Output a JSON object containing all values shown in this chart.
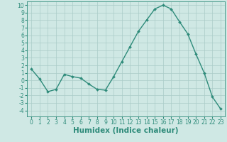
{
  "x": [
    0,
    1,
    2,
    3,
    4,
    5,
    6,
    7,
    8,
    9,
    10,
    11,
    12,
    13,
    14,
    15,
    16,
    17,
    18,
    19,
    20,
    21,
    22,
    23
  ],
  "y": [
    1.5,
    0.2,
    -1.5,
    -1.2,
    0.8,
    0.5,
    0.3,
    -0.5,
    -1.2,
    -1.3,
    0.5,
    2.5,
    4.5,
    6.5,
    8.0,
    9.5,
    10.0,
    9.5,
    7.8,
    6.2,
    3.5,
    1.0,
    -2.2,
    -3.8
  ],
  "line_color": "#2e8b7a",
  "marker": "D",
  "marker_size": 2.0,
  "bg_color": "#cfe8e4",
  "grid_color": "#aaccc8",
  "xlabel": "Humidex (Indice chaleur)",
  "ylim": [
    -4.8,
    10.5
  ],
  "xlim": [
    -0.5,
    23.5
  ],
  "yticks": [
    -4,
    -3,
    -2,
    -1,
    0,
    1,
    2,
    3,
    4,
    5,
    6,
    7,
    8,
    9,
    10
  ],
  "xticks": [
    0,
    1,
    2,
    3,
    4,
    5,
    6,
    7,
    8,
    9,
    10,
    11,
    12,
    13,
    14,
    15,
    16,
    17,
    18,
    19,
    20,
    21,
    22,
    23
  ],
  "tick_fontsize": 5.5,
  "xlabel_fontsize": 7.5,
  "linewidth": 1.0
}
